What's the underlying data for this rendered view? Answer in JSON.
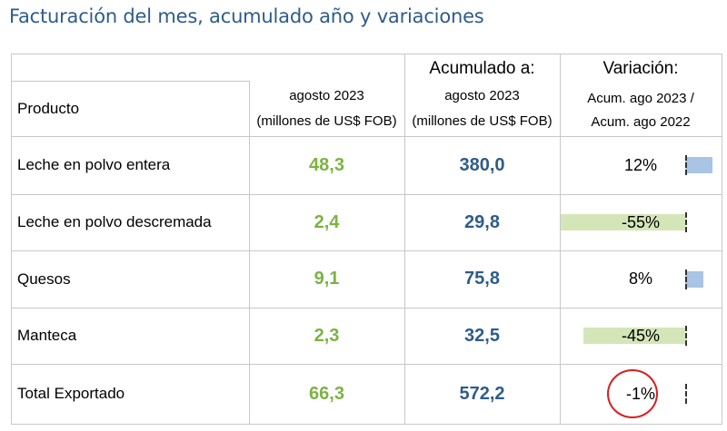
{
  "title": "Facturación del mes, acumulado año y variaciones",
  "header": {
    "acumulado_top": "Acumulado a:",
    "variacion_top": "Variación:",
    "producto": "Producto",
    "mes_line1": "agosto 2023",
    "mes_line2": "(millones de US$ FOB)",
    "acum_line1": "agosto 2023",
    "acum_line2": "(millones de US$ FOB)",
    "var_line1": "Acum. ago 2023 /",
    "var_line2": "Acum. ago 2022"
  },
  "rows": [
    {
      "producto": "Leche en polvo entera",
      "mes": "48,3",
      "acumulado": "380,0",
      "variacion": "12%",
      "variacion_value": 12
    },
    {
      "producto": "Leche en polvo descremada",
      "mes": "2,4",
      "acumulado": "29,8",
      "variacion": "-55%",
      "variacion_value": -55
    },
    {
      "producto": "Quesos",
      "mes": "9,1",
      "acumulado": "75,8",
      "variacion": "8%",
      "variacion_value": 8
    },
    {
      "producto": "Manteca",
      "mes": "2,3",
      "acumulado": "32,5",
      "variacion": "-45%",
      "variacion_value": -45
    },
    {
      "producto": "Total Exportado",
      "mes": "66,3",
      "acumulado": "572,2",
      "variacion": "-1%",
      "variacion_value": -1
    }
  ],
  "colors": {
    "title": "#2e5c8a",
    "month_values": "#7cb342",
    "accumulated_values": "#2e5c8a",
    "positive_bar": "#a9c4e4",
    "negative_bar": "#d4e6b8",
    "highlight_circle": "#d81e1e"
  }
}
